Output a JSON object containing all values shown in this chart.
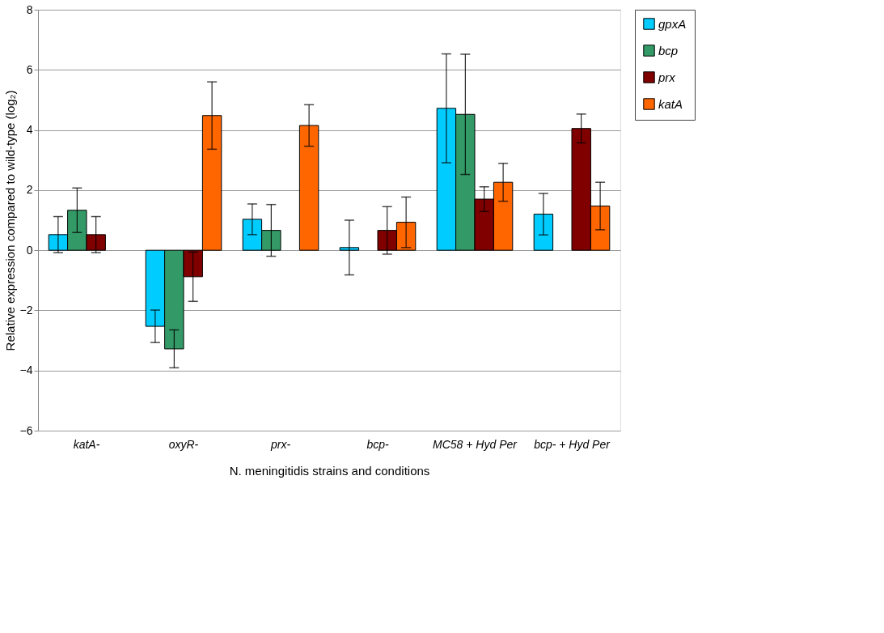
{
  "chart_data": {
    "type": "bar",
    "xlabel": "N. meningitidis strains and conditions",
    "ylabel": "Relative expression compared to wild-type (log₂)",
    "categories": [
      "katA-",
      "oxyR-",
      "prx-",
      "bcp-",
      "MC58 + Hyd Per",
      "bcp-  + Hyd Per"
    ],
    "series": [
      {
        "name": "gpxA",
        "color": "#00ccff",
        "values": [
          0.52,
          -2.53,
          1.03,
          0.09,
          4.72,
          1.2
        ],
        "errors": [
          0.6,
          0.54,
          0.51,
          0.91,
          1.81,
          0.69
        ]
      },
      {
        "name": "bcp",
        "color": "#339966",
        "values": [
          1.33,
          -3.28,
          0.66,
          null,
          4.52,
          null
        ],
        "errors": [
          0.74,
          0.63,
          0.86,
          null,
          2.0,
          null
        ]
      },
      {
        "name": "prx",
        "color": "#800000",
        "values": [
          0.52,
          -0.88,
          null,
          0.66,
          1.7,
          4.05
        ],
        "errors": [
          0.6,
          0.82,
          null,
          0.79,
          0.41,
          0.48
        ]
      },
      {
        "name": "katA",
        "color": "#ff6600",
        "values": [
          null,
          4.48,
          4.15,
          0.93,
          2.26,
          1.47
        ],
        "errors": [
          null,
          1.12,
          0.69,
          0.84,
          0.63,
          0.79
        ]
      }
    ],
    "ylim": [
      -6,
      8
    ],
    "yticks": [
      -6,
      -4,
      -2,
      0,
      2,
      4,
      6,
      8
    ],
    "grid": "y",
    "legend": "right"
  }
}
